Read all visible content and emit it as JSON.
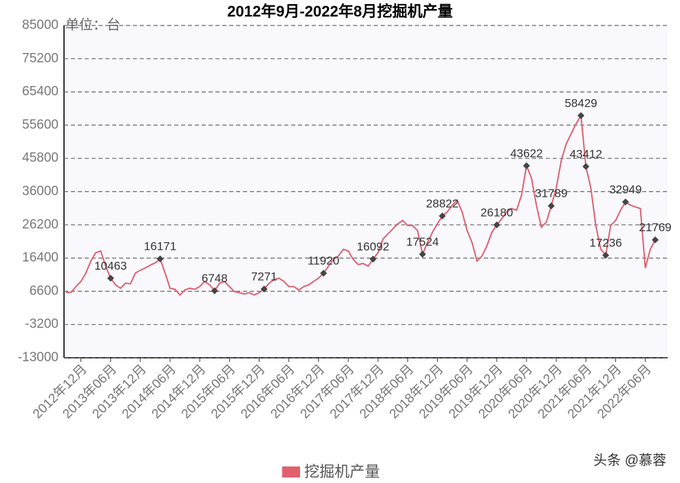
{
  "chart_data": {
    "type": "line",
    "title": "2012年9月-2022年8月挖掘机产量",
    "y_label": "单位：台",
    "watermark": "头条 @慕蓉",
    "categories": [
      null,
      null,
      null,
      "2012年12月",
      null,
      null,
      null,
      null,
      null,
      "2013年06月",
      null,
      null,
      null,
      null,
      null,
      "2013年12月",
      null,
      null,
      null,
      null,
      null,
      "2014年06月",
      null,
      null,
      null,
      null,
      null,
      "2014年12月",
      null,
      null,
      null,
      null,
      null,
      "2015年06月",
      null,
      null,
      null,
      null,
      null,
      "2015年12月",
      null,
      null,
      null,
      null,
      null,
      "2016年06月",
      null,
      null,
      null,
      null,
      null,
      "2016年12月",
      null,
      null,
      null,
      null,
      null,
      "2017年06月",
      null,
      null,
      null,
      null,
      null,
      "2017年12月",
      null,
      null,
      null,
      null,
      null,
      "2018年06月",
      null,
      null,
      null,
      null,
      null,
      "2018年12月",
      null,
      null,
      null,
      null,
      null,
      "2019年06月",
      null,
      null,
      null,
      null,
      null,
      "2019年12月",
      null,
      null,
      null,
      null,
      null,
      "2020年06月",
      null,
      null,
      null,
      null,
      null,
      "2020年12月",
      null,
      null,
      null,
      null,
      null,
      "2021年06月",
      null,
      null,
      null,
      null,
      null,
      "2021年12月",
      null,
      null,
      null,
      null,
      null,
      "2022年06月",
      null,
      null
    ],
    "series": [
      {
        "name": "挖掘机产量",
        "color": "#e0606e",
        "values": [
          6300,
          6300,
          8000,
          9500,
          12000,
          15500,
          18000,
          18500,
          14000,
          10463,
          8500,
          7500,
          9000,
          8800,
          12000,
          12800,
          13500,
          14300,
          15000,
          16171,
          12000,
          7500,
          7200,
          5500,
          7000,
          7500,
          7200,
          8000,
          9500,
          8500,
          6748,
          9000,
          9500,
          8000,
          6500,
          6200,
          5800,
          6200,
          5500,
          6200,
          7271,
          9000,
          10000,
          10500,
          9500,
          8000,
          8000,
          7000,
          8000,
          8500,
          9500,
          10500,
          11920,
          14000,
          16000,
          17000,
          19000,
          18500,
          16000,
          14500,
          14800,
          14000,
          16092,
          18000,
          22000,
          23500,
          25000,
          26500,
          27500,
          26000,
          26000,
          24500,
          17524,
          21000,
          24000,
          26500,
          28822,
          30000,
          32000,
          33500,
          30000,
          24500,
          21000,
          15500,
          17000,
          20000,
          24000,
          26180,
          28000,
          30000,
          31000,
          30500,
          35000,
          43622,
          40000,
          32000,
          25500,
          27000,
          31789,
          37000,
          45000,
          50000,
          53000,
          56000,
          58429,
          43412,
          37000,
          26000,
          19000,
          17236,
          26000,
          27500,
          30500,
          32949,
          32000,
          31500,
          31000,
          13500,
          19000,
          21769
        ],
        "value_labels": [
          null,
          null,
          null,
          null,
          null,
          null,
          null,
          null,
          null,
          "10463",
          null,
          null,
          null,
          null,
          null,
          null,
          null,
          null,
          null,
          "16171",
          null,
          null,
          null,
          null,
          null,
          null,
          null,
          null,
          null,
          null,
          "6748",
          null,
          null,
          null,
          null,
          null,
          null,
          null,
          null,
          null,
          "7271",
          null,
          null,
          null,
          null,
          null,
          null,
          null,
          null,
          null,
          null,
          null,
          "11920",
          null,
          null,
          null,
          null,
          null,
          null,
          null,
          null,
          null,
          "16092",
          null,
          null,
          null,
          null,
          null,
          null,
          null,
          null,
          null,
          "17524",
          null,
          null,
          null,
          "28822",
          null,
          null,
          null,
          null,
          null,
          null,
          null,
          null,
          null,
          null,
          "26180",
          null,
          null,
          null,
          null,
          null,
          "43622",
          null,
          null,
          null,
          null,
          "31789",
          null,
          null,
          null,
          null,
          null,
          "58429",
          "43412",
          null,
          null,
          null,
          "17236",
          null,
          null,
          null,
          "32949",
          null,
          null,
          null,
          null,
          null,
          "21769"
        ]
      }
    ],
    "ylim": [
      -13000,
      85000
    ],
    "yticks": [
      85000,
      75200,
      65400,
      55600,
      45800,
      36000,
      26200,
      16400,
      6600,
      -3200,
      -13000
    ],
    "grid": true,
    "legend": "bottom"
  }
}
